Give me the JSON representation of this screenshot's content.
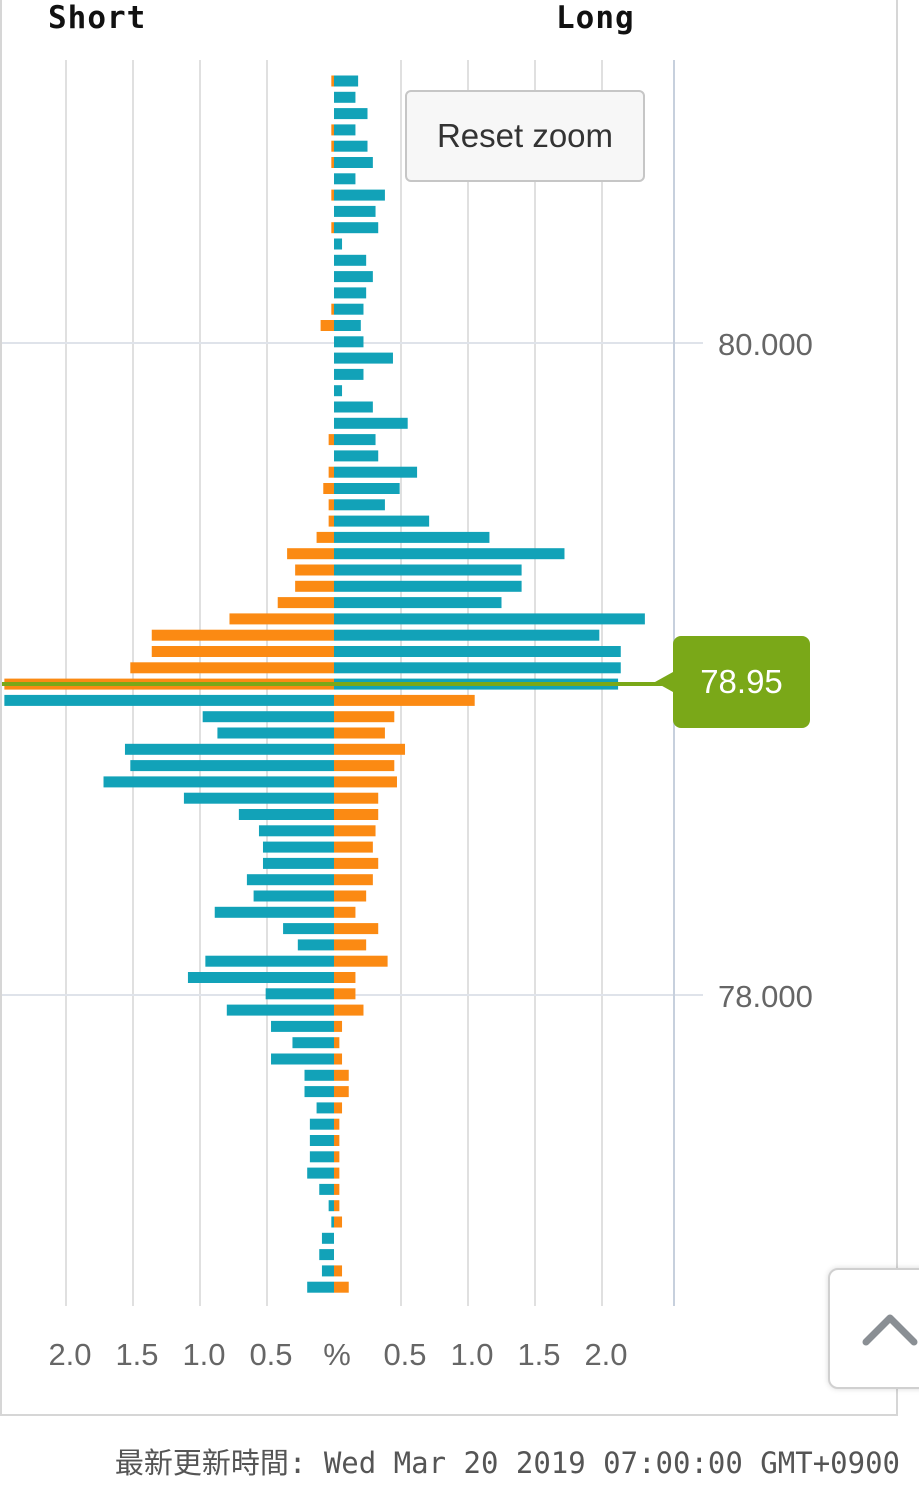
{
  "header": {
    "short_label": "Short",
    "long_label": "Long"
  },
  "reset_zoom_label": "Reset zoom",
  "current_price_label": "78.95",
  "updated_text": "最新更新時間: Wed Mar 20 2019 07:00:00 GMT+0900",
  "colors": {
    "long": "#12a2b8",
    "short": "#fb8a13",
    "price_line": "#7aa818",
    "grid": "#e0e0e0"
  },
  "chart_data": {
    "type": "bar",
    "orientation": "horizontal-butterfly",
    "title": "",
    "xlabel": "%",
    "x_tick_labels": [
      "2.0",
      "1.5",
      "1.0",
      "0.5",
      "%",
      "0.5",
      "1.0",
      "1.5",
      "2.0"
    ],
    "y_tick_labels": [
      "80.000",
      "78.000"
    ],
    "y_ticks": [
      80.0,
      78.0
    ],
    "y_range": [
      76.95,
      80.82
    ],
    "x_range": [
      -2.5,
      2.5
    ],
    "grid": true,
    "current_price": 78.95,
    "bars": [
      {
        "long_top": 0.18,
        "short_top": 0.02,
        "long_bottom": null,
        "short_bottom": null
      },
      {
        "long_top": 0.16,
        "short_top": 0.0
      },
      {
        "long_top": 0.25,
        "short_top": 0.0
      },
      {
        "long_top": 0.16,
        "short_top": 0.02
      },
      {
        "long_top": 0.25,
        "short_top": 0.02
      },
      {
        "long_top": 0.29,
        "short_top": 0.02
      },
      {
        "long_top": 0.16,
        "short_top": 0.0
      },
      {
        "long_top": 0.38,
        "short_top": 0.02
      },
      {
        "long_top": 0.31,
        "short_top": 0.0
      },
      {
        "long_top": 0.33,
        "short_top": 0.02
      },
      {
        "long_top": 0.06,
        "short_top": 0.0
      },
      {
        "long_top": 0.24,
        "short_top": 0.0
      },
      {
        "long_top": 0.29,
        "short_top": 0.0
      },
      {
        "long_top": 0.24,
        "short_top": 0.0
      },
      {
        "long_top": 0.22,
        "short_top": 0.02
      },
      {
        "long_top": 0.2,
        "short_top": 0.1
      },
      {
        "long_top": 0.22,
        "short_top": 0.0
      },
      {
        "long_top": 0.44,
        "short_top": 0.0
      },
      {
        "long_top": 0.22,
        "short_top": 0.0
      },
      {
        "long_top": 0.06,
        "short_top": 0.0
      },
      {
        "long_top": 0.29,
        "short_top": 0.0
      },
      {
        "long_top": 0.55,
        "short_top": 0.0
      },
      {
        "long_top": 0.31,
        "short_top": 0.04
      },
      {
        "long_top": 0.33,
        "short_top": 0.0
      },
      {
        "long_top": 0.62,
        "short_top": 0.04
      },
      {
        "long_top": 0.49,
        "short_top": 0.08
      },
      {
        "long_top": 0.38,
        "short_top": 0.04
      },
      {
        "long_top": 0.71,
        "short_top": 0.04
      },
      {
        "long_top": 1.16,
        "short_top": 0.13
      },
      {
        "long_top": 1.72,
        "short_top": 0.35
      },
      {
        "long_top": 1.4,
        "short_top": 0.29
      },
      {
        "long_top": 1.4,
        "short_top": 0.29
      },
      {
        "long_top": 1.25,
        "short_top": 0.42
      },
      {
        "long_top": 2.32,
        "short_top": 0.78
      },
      {
        "long_top": 1.98,
        "short_top": 1.36
      },
      {
        "long_top": 2.14,
        "short_top": 1.36
      },
      {
        "long_top": 2.14,
        "short_top": 1.52
      },
      {
        "long_top": 2.12,
        "short_top": 2.46
      },
      {
        "long_bottom": 1.05,
        "short_bottom": 2.46
      },
      {
        "long_bottom": 0.45,
        "short_bottom": 0.98
      },
      {
        "long_bottom": 0.38,
        "short_bottom": 0.87
      },
      {
        "long_bottom": 0.53,
        "short_bottom": 1.56
      },
      {
        "long_bottom": 0.45,
        "short_bottom": 1.52
      },
      {
        "long_bottom": 0.47,
        "short_bottom": 1.72
      },
      {
        "long_bottom": 0.33,
        "short_bottom": 1.12
      },
      {
        "long_bottom": 0.33,
        "short_bottom": 0.71
      },
      {
        "long_bottom": 0.31,
        "short_bottom": 0.56
      },
      {
        "long_bottom": 0.29,
        "short_bottom": 0.53
      },
      {
        "long_bottom": 0.33,
        "short_bottom": 0.53
      },
      {
        "long_bottom": 0.29,
        "short_bottom": 0.65
      },
      {
        "long_bottom": 0.24,
        "short_bottom": 0.6
      },
      {
        "long_bottom": 0.16,
        "short_bottom": 0.89
      },
      {
        "long_bottom": 0.33,
        "short_bottom": 0.38
      },
      {
        "long_bottom": 0.24,
        "short_bottom": 0.27
      },
      {
        "long_bottom": 0.4,
        "short_bottom": 0.96
      },
      {
        "long_bottom": 0.16,
        "short_bottom": 1.09
      },
      {
        "long_bottom": 0.16,
        "short_bottom": 0.51
      },
      {
        "long_bottom": 0.22,
        "short_bottom": 0.8
      },
      {
        "long_bottom": 0.06,
        "short_bottom": 0.47
      },
      {
        "long_bottom": 0.04,
        "short_bottom": 0.31
      },
      {
        "long_bottom": 0.06,
        "short_bottom": 0.47
      },
      {
        "long_bottom": 0.11,
        "short_bottom": 0.22
      },
      {
        "long_bottom": 0.11,
        "short_bottom": 0.22
      },
      {
        "long_bottom": 0.06,
        "short_bottom": 0.13
      },
      {
        "long_bottom": 0.04,
        "short_bottom": 0.18
      },
      {
        "long_bottom": 0.04,
        "short_bottom": 0.18
      },
      {
        "long_bottom": 0.04,
        "short_bottom": 0.18
      },
      {
        "long_bottom": 0.04,
        "short_bottom": 0.2
      },
      {
        "long_bottom": 0.04,
        "short_bottom": 0.11
      },
      {
        "long_bottom": 0.04,
        "short_bottom": 0.04
      },
      {
        "long_bottom": 0.06,
        "short_bottom": 0.02
      },
      {
        "long_bottom": 0.0,
        "short_bottom": 0.09
      },
      {
        "long_bottom": 0.0,
        "short_bottom": 0.11
      },
      {
        "long_bottom": 0.06,
        "short_bottom": 0.09
      },
      {
        "long_bottom": 0.11,
        "short_bottom": 0.2
      }
    ]
  }
}
